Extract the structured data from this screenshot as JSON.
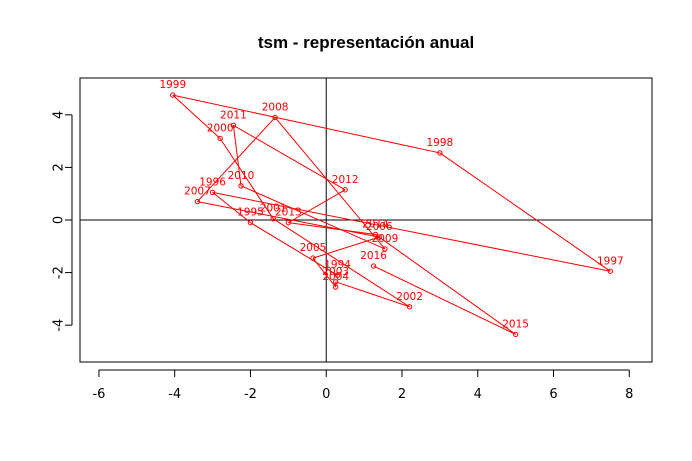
{
  "chart_data": {
    "type": "line",
    "title": "tsm - representación anual",
    "xlabel": "",
    "ylabel": "",
    "xlim": [
      -6.5,
      8.6
    ],
    "ylim": [
      -5.4,
      5.4
    ],
    "xticks": [
      "-6",
      "-4",
      "-2",
      "0",
      "2",
      "4",
      "6",
      "8"
    ],
    "yticks": [
      "-4",
      "-2",
      "0",
      "2",
      "4"
    ],
    "xtick_values": [
      -6,
      -4,
      -2,
      0,
      2,
      4,
      6,
      8
    ],
    "ytick_values": [
      -4,
      -2,
      0,
      2,
      4
    ],
    "reference_lines": {
      "x": 0,
      "y": 0
    },
    "grid": false,
    "color": "#ff0000",
    "series": [
      {
        "points": [
          {
            "label": "1994",
            "x": 0.3,
            "y": -2.1
          },
          {
            "label": "1995",
            "x": -2.0,
            "y": -0.1
          },
          {
            "label": "1996",
            "x": -3.0,
            "y": 1.05
          },
          {
            "label": "1997",
            "x": 7.5,
            "y": -1.95
          },
          {
            "label": "1998",
            "x": 3.0,
            "y": 2.55
          },
          {
            "label": "1999",
            "x": -4.05,
            "y": 4.75
          },
          {
            "label": "2000",
            "x": -2.8,
            "y": 3.1
          },
          {
            "label": "2001",
            "x": -1.4,
            "y": 0.05
          },
          {
            "label": "2002",
            "x": 2.2,
            "y": -3.3
          },
          {
            "label": "2003",
            "x": 0.25,
            "y": -2.35
          },
          {
            "label": "2004",
            "x": 0.25,
            "y": -2.55
          },
          {
            "label": "2005",
            "x": -0.35,
            "y": -1.45
          },
          {
            "label": "2006",
            "x": 1.4,
            "y": -0.65
          },
          {
            "label": "2007",
            "x": -3.4,
            "y": 0.7
          },
          {
            "label": "2008",
            "x": -1.35,
            "y": 3.9
          },
          {
            "label": "2009",
            "x": 1.55,
            "y": -1.1
          },
          {
            "label": "2010",
            "x": -2.25,
            "y": 1.3
          },
          {
            "label": "2011",
            "x": -2.45,
            "y": 3.6
          },
          {
            "label": "2012",
            "x": 0.5,
            "y": 1.15
          },
          {
            "label": "2013",
            "x": -1.0,
            "y": -0.1
          },
          {
            "label": "2014",
            "x": 1.3,
            "y": -0.55
          },
          {
            "label": "2015",
            "x": 5.0,
            "y": -4.35
          },
          {
            "label": "2016",
            "x": 1.25,
            "y": -1.75
          }
        ]
      }
    ]
  }
}
